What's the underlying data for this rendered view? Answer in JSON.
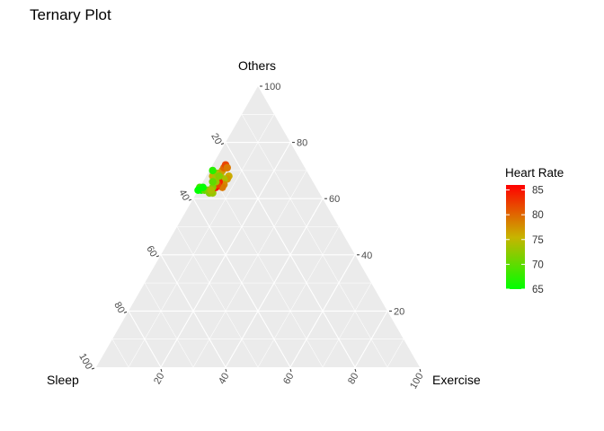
{
  "chart_data": {
    "type": "scatter",
    "title": "Ternary Plot",
    "axes": {
      "top": "Others",
      "left": "Sleep",
      "right": "Exercise"
    },
    "ticks": [
      20,
      40,
      60,
      80,
      100
    ],
    "grid": true,
    "gridlines_every": 10,
    "legend": {
      "title": "Heart Rate",
      "position": "right",
      "min": 65,
      "max": 86,
      "ticks": [
        65,
        70,
        75,
        80,
        85
      ],
      "color_low": "#00ff00",
      "color_mid": "#c8b400",
      "color_high": "#ff0000"
    },
    "colors": {
      "panel": "#ebebeb",
      "grid": "#ffffff",
      "tick_text": "#4d4d4d"
    },
    "points": [
      {
        "sleep": 36,
        "exercise": 0,
        "others": 64,
        "heart_rate": 68
      },
      {
        "sleep": 36,
        "exercise": 1,
        "others": 63,
        "heart_rate": 66
      },
      {
        "sleep": 35,
        "exercise": 2,
        "others": 63,
        "heart_rate": 70
      },
      {
        "sleep": 34,
        "exercise": 3,
        "others": 63,
        "heart_rate": 71
      },
      {
        "sleep": 34,
        "exercise": 4,
        "others": 62,
        "heart_rate": 72
      },
      {
        "sleep": 33,
        "exercise": 5,
        "others": 62,
        "heart_rate": 73
      },
      {
        "sleep": 30,
        "exercise": 2,
        "others": 68,
        "heart_rate": 76
      },
      {
        "sleep": 29,
        "exercise": 3,
        "others": 68,
        "heart_rate": 74
      },
      {
        "sleep": 28,
        "exercise": 3,
        "others": 69,
        "heart_rate": 73
      },
      {
        "sleep": 27,
        "exercise": 4,
        "others": 69,
        "heart_rate": 75
      },
      {
        "sleep": 26,
        "exercise": 4,
        "others": 70,
        "heart_rate": 77
      },
      {
        "sleep": 25,
        "exercise": 4,
        "others": 71,
        "heart_rate": 80
      },
      {
        "sleep": 24,
        "exercise": 4,
        "others": 72,
        "heart_rate": 82
      },
      {
        "sleep": 24,
        "exercise": 5,
        "others": 71,
        "heart_rate": 79
      },
      {
        "sleep": 25,
        "exercise": 7,
        "others": 68,
        "heart_rate": 76
      },
      {
        "sleep": 26,
        "exercise": 7,
        "others": 67,
        "heart_rate": 77
      },
      {
        "sleep": 27,
        "exercise": 6,
        "others": 67,
        "heart_rate": 74
      },
      {
        "sleep": 28,
        "exercise": 7,
        "others": 65,
        "heart_rate": 78
      },
      {
        "sleep": 29,
        "exercise": 7,
        "others": 64,
        "heart_rate": 79
      },
      {
        "sleep": 29,
        "exercise": 5,
        "others": 66,
        "heart_rate": 84
      },
      {
        "sleep": 31,
        "exercise": 5,
        "others": 64,
        "heart_rate": 85
      },
      {
        "sleep": 30,
        "exercise": 5,
        "others": 65,
        "heart_rate": 82
      },
      {
        "sleep": 30,
        "exercise": 4,
        "others": 66,
        "heart_rate": 73
      },
      {
        "sleep": 29,
        "exercise": 1,
        "others": 70,
        "heart_rate": 67
      },
      {
        "sleep": 32,
        "exercise": 4,
        "others": 64,
        "heart_rate": 72
      },
      {
        "sleep": 33,
        "exercise": 4,
        "others": 63,
        "heart_rate": 74
      },
      {
        "sleep": 31,
        "exercise": 3,
        "others": 66,
        "heart_rate": 70
      },
      {
        "sleep": 28,
        "exercise": 4,
        "others": 68,
        "heart_rate": 72
      },
      {
        "sleep": 35,
        "exercise": 1,
        "others": 64,
        "heart_rate": 65
      },
      {
        "sleep": 37,
        "exercise": 0,
        "others": 63,
        "heart_rate": 65
      }
    ]
  }
}
